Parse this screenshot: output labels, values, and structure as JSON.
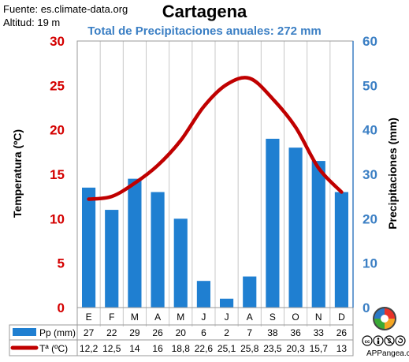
{
  "header": {
    "source": "Fuente: es.climate-data.org",
    "altitude": "Altitud: 19 m",
    "title": "Cartagena",
    "subtitle": "Total de Precipitaciones anuales: 272 mm"
  },
  "axes": {
    "left_label": "Temperatura (ºC)",
    "right_label": "Precipitaciones (mm)",
    "left_ticks": [
      "0",
      "5",
      "10",
      "15",
      "20",
      "25",
      "30"
    ],
    "right_ticks": [
      "0",
      "10",
      "20",
      "30",
      "40",
      "50",
      "60"
    ]
  },
  "table": {
    "precip_label": "Pp (mm)",
    "temp_label": "Tª (ºC)",
    "precip_values": [
      "27",
      "22",
      "29",
      "26",
      "20",
      "6",
      "2",
      "7",
      "38",
      "36",
      "33",
      "26"
    ],
    "temp_values": [
      "12,2",
      "12,5",
      "14",
      "16",
      "18,8",
      "22,6",
      "25,1",
      "25,8",
      "23,5",
      "20,3",
      "15,7",
      "13"
    ]
  },
  "footer": {
    "credit": "APPangea.com",
    "license_icons": [
      "cc-icon",
      "attribution-icon",
      "noncommercial-icon",
      "sharealike-icon"
    ]
  },
  "colors": {
    "bars": "#1f7fd1",
    "temperature_line": "#c00000",
    "left_axis": "#d40000",
    "right_axis": "#3b7fc4",
    "subtitle": "#3b7fc4"
  },
  "chart_data": {
    "type": "bar",
    "title": "Cartagena",
    "subtitle": "Total de Precipitaciones anuales: 272 mm",
    "categories": [
      "E",
      "F",
      "M",
      "A",
      "M",
      "J",
      "J",
      "A",
      "S",
      "O",
      "N",
      "D"
    ],
    "series": [
      {
        "name": "Pp (mm)",
        "type": "bar",
        "axis": "right",
        "values": [
          27,
          22,
          29,
          26,
          20,
          6,
          2,
          7,
          38,
          36,
          33,
          26
        ]
      },
      {
        "name": "Tª (ºC)",
        "type": "line",
        "axis": "left",
        "values": [
          12.2,
          12.5,
          14,
          16,
          18.8,
          22.6,
          25.1,
          25.8,
          23.5,
          20.3,
          15.7,
          13
        ]
      }
    ],
    "ylabel_left": "Temperatura (ºC)",
    "ylabel_right": "Precipitaciones (mm)",
    "ylim_left": [
      0,
      30
    ],
    "ylim_right": [
      0,
      60
    ],
    "grid": "vertical",
    "legend": "table below chart"
  }
}
